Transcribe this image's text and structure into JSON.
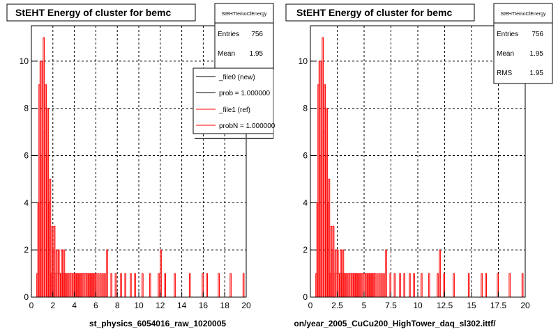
{
  "chart_data": [
    {
      "type": "histogram",
      "title": "StEHT Energy of cluster for bemc",
      "xlabel": "st_physics_6054016_raw_1020005",
      "ylabel": "",
      "xlim": [
        0,
        20
      ],
      "ylim": [
        0,
        11.5
      ],
      "x_ticks": [
        "0",
        "2",
        "4",
        "6",
        "8",
        "10",
        "12",
        "14",
        "16",
        "18",
        "20"
      ],
      "y_ticks": [
        "0",
        "2",
        "4",
        "6",
        "8",
        "10"
      ],
      "grid": true,
      "stats": {
        "name": "StEHTtemoClEnergy",
        "rows": [
          {
            "label": "Entries",
            "value": "756"
          },
          {
            "label": "Mean",
            "value": "1.95"
          }
        ]
      },
      "legend": {
        "placement": "top-right",
        "entries": [
          {
            "label": "_file0 (new)",
            "color": "#000000"
          },
          {
            "label": "prob = 1.000000",
            "color": "#000000"
          },
          {
            "label": "_file1 (ref)",
            "color": "#ff0000"
          },
          {
            "label": "probN = 1.000000",
            "color": "#ff0000"
          }
        ]
      },
      "series": [
        {
          "color": "#ff0000",
          "bin_width": 0.1,
          "x": [
            0.5,
            0.6,
            0.7,
            0.8,
            0.9,
            1.0,
            1.1,
            1.2,
            1.3,
            1.4,
            1.5,
            1.6,
            1.7,
            1.8,
            1.9,
            2.0,
            2.1,
            2.2,
            2.3,
            2.4,
            2.5,
            2.6,
            2.7,
            2.8,
            2.9,
            3.0,
            3.1,
            3.2,
            3.3,
            3.4,
            3.5,
            3.6,
            3.7,
            3.8,
            3.9,
            4.0,
            4.1,
            4.2,
            4.3,
            4.4,
            4.5,
            4.6,
            4.7,
            4.8,
            4.9,
            5.0,
            5.1,
            5.2,
            5.3,
            5.4,
            5.5,
            5.6,
            5.7,
            5.8,
            5.9,
            6.0,
            6.2,
            6.4,
            6.6,
            6.8,
            7.0,
            7.4,
            7.8,
            8.3,
            8.7,
            9.2,
            9.6,
            10.3,
            11.0,
            11.8,
            12.0,
            12.4,
            13.3,
            14.7,
            15.9,
            16.3,
            17.4,
            18.5,
            19.7,
            20.0
          ],
          "values": [
            1,
            4,
            9,
            10,
            6,
            10,
            11,
            7,
            9,
            6,
            8,
            4,
            5,
            1,
            3,
            2,
            3,
            1,
            2,
            1,
            2,
            1,
            1,
            2,
            1,
            2,
            1,
            1,
            1,
            1,
            1,
            1,
            1,
            1,
            1,
            1,
            1,
            1,
            1,
            1,
            1,
            1,
            1,
            1,
            1,
            1,
            1,
            1,
            1,
            1,
            1,
            1,
            1,
            1,
            1,
            1,
            1,
            1,
            1,
            1,
            2,
            1,
            1,
            1,
            1,
            1,
            1,
            1,
            1,
            1,
            2,
            1,
            1,
            1,
            1,
            1,
            1,
            1,
            1,
            1
          ]
        }
      ]
    },
    {
      "type": "histogram",
      "title": "StEHT Energy of cluster for bemc",
      "xlabel": "on/year_2005_CuCu200_HighTower_daq_sl302.ittf/",
      "ylabel": "",
      "xlim": [
        0,
        20
      ],
      "ylim": [
        0,
        11.5
      ],
      "x_ticks": [
        "0",
        "2.5",
        "5",
        "7.5",
        "10",
        "12.5",
        "15",
        "17.5",
        "20"
      ],
      "y_ticks": [
        "0",
        "2",
        "4",
        "6",
        "8",
        "10"
      ],
      "grid": true,
      "stats": {
        "name": "StEHTtemoClEnergy",
        "rows": [
          {
            "label": "Entries",
            "value": "756"
          },
          {
            "label": "Mean",
            "value": "1.95"
          },
          {
            "label": "RMS",
            "value": "1.95"
          }
        ]
      },
      "series": [
        {
          "color": "#ff0000",
          "bin_width": 0.1,
          "x": [
            0.5,
            0.6,
            0.7,
            0.8,
            0.9,
            1.0,
            1.1,
            1.2,
            1.3,
            1.4,
            1.5,
            1.6,
            1.7,
            1.8,
            1.9,
            2.0,
            2.1,
            2.2,
            2.3,
            2.4,
            2.5,
            2.6,
            2.7,
            2.8,
            2.9,
            3.0,
            3.1,
            3.2,
            3.3,
            3.4,
            3.5,
            3.6,
            3.7,
            3.8,
            3.9,
            4.0,
            4.1,
            4.2,
            4.3,
            4.4,
            4.5,
            4.6,
            4.7,
            4.8,
            4.9,
            5.0,
            5.1,
            5.2,
            5.3,
            5.4,
            5.5,
            5.6,
            5.7,
            5.8,
            5.9,
            6.0,
            6.2,
            6.4,
            6.6,
            6.8,
            7.0,
            7.4,
            7.8,
            8.3,
            8.7,
            9.2,
            9.6,
            10.3,
            11.0,
            11.8,
            12.0,
            12.4,
            13.3,
            14.7,
            15.9,
            16.3,
            17.4,
            18.5,
            19.7,
            20.0
          ],
          "values": [
            1,
            4,
            9,
            10,
            6,
            10,
            11,
            7,
            9,
            6,
            8,
            4,
            5,
            1,
            3,
            2,
            3,
            1,
            2,
            1,
            2,
            1,
            1,
            2,
            1,
            2,
            1,
            1,
            1,
            1,
            1,
            1,
            1,
            1,
            1,
            1,
            1,
            1,
            1,
            1,
            1,
            1,
            1,
            1,
            1,
            1,
            1,
            1,
            1,
            1,
            1,
            1,
            1,
            1,
            1,
            1,
            1,
            1,
            1,
            1,
            2,
            1,
            1,
            1,
            1,
            1,
            1,
            1,
            1,
            1,
            2,
            1,
            1,
            1,
            1,
            1,
            1,
            1,
            1,
            1
          ]
        }
      ]
    }
  ]
}
